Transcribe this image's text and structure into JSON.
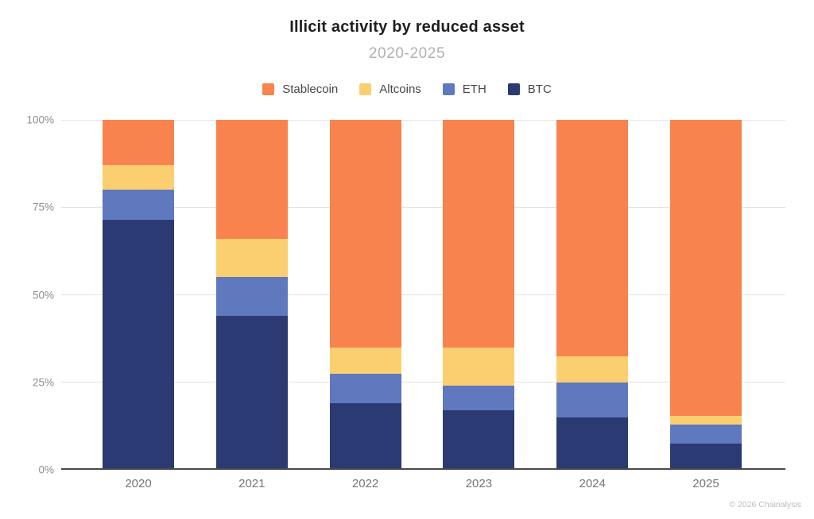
{
  "header": {
    "title": "Illicit activity by reduced asset",
    "subtitle": "2020-2025"
  },
  "footer": {
    "attribution": "© 2026 Chainalysis"
  },
  "colors": {
    "stablecoin": "#F9834E",
    "altcoins": "#FBCF70",
    "eth": "#5F78BE",
    "btc": "#2B3A72",
    "gridline": "#E3E3E3",
    "axis_line": "#4A4A4A",
    "title_text": "#1E1E1E",
    "subtitle_text": "#B1B1B1",
    "ytick_text": "#8C8C8C",
    "xtick_text": "#757575",
    "legend_text": "#474747",
    "attribution_text": "#BDBDBD"
  },
  "chart_data": {
    "type": "bar",
    "stacked": true,
    "stacking": "percent",
    "title": "Illicit activity by reduced asset",
    "subtitle": "2020-2025",
    "categories": [
      "2020",
      "2021",
      "2022",
      "2023",
      "2024",
      "2025"
    ],
    "xlabel": "",
    "ylabel": "",
    "ylim": [
      0,
      100
    ],
    "yticks": [
      0,
      25,
      50,
      75,
      100
    ],
    "ytick_labels": [
      "0%",
      "25%",
      "50%",
      "75%",
      "100%"
    ],
    "grid": "horizontal",
    "legend_position": "top",
    "legend_order": [
      "Stablecoin",
      "Altcoins",
      "ETH",
      "BTC"
    ],
    "series": [
      {
        "name": "Stablecoin",
        "color": "#F9834E",
        "values": [
          13,
          34,
          65,
          65,
          67.5,
          84.5
        ]
      },
      {
        "name": "Altcoins",
        "color": "#FBCF70",
        "values": [
          7,
          11,
          7.5,
          11,
          7.5,
          2.5
        ]
      },
      {
        "name": "ETH",
        "color": "#5F78BE",
        "values": [
          8.5,
          11,
          8.5,
          7,
          10,
          5.5
        ]
      },
      {
        "name": "BTC",
        "color": "#2B3A72",
        "values": [
          71.5,
          44,
          19,
          17,
          15,
          7.5
        ]
      }
    ]
  }
}
